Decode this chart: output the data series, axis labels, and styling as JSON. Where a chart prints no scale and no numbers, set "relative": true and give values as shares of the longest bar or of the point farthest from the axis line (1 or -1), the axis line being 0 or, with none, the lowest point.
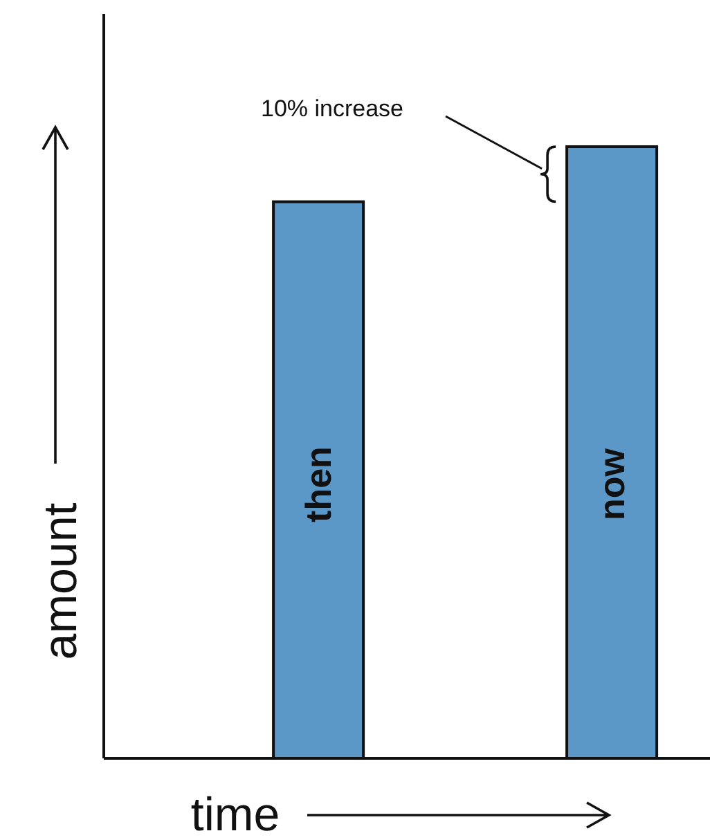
{
  "chart_data": {
    "type": "bar",
    "relative": true,
    "xlabel": "time",
    "ylabel": "amount",
    "categories": [
      "then",
      "now"
    ],
    "values": [
      0.91,
      1
    ],
    "color": "#5b98c8",
    "annotations": [
      "10% increase"
    ]
  }
}
